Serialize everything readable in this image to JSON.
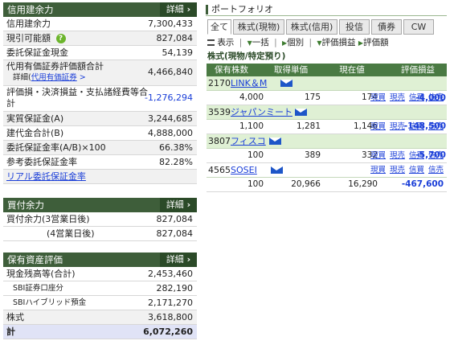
{
  "credit_panel": {
    "title": "信用建余力",
    "detail_label": "詳細",
    "rows": [
      {
        "label": "信用建余力",
        "value": "7,300,433"
      },
      {
        "label": "現引可能額",
        "value": "827,084"
      },
      {
        "label": "委託保証金現金",
        "value": "54,139"
      },
      {
        "label": "代用有価証券評価額合計",
        "value": "4,466,840"
      },
      {
        "label": "評価損・決済損益・支払諸経費等合計",
        "value": "-1,276,294"
      },
      {
        "label": "実質保証金(A)",
        "value": "3,244,685"
      },
      {
        "label": "建代金合計(B)",
        "value": "4,888,000"
      },
      {
        "label": "委託保証金率(A/B)×100",
        "value": "66.38%"
      },
      {
        "label": "参考委託保証金率",
        "value": "82.28%"
      }
    ],
    "help_icon_text": "?",
    "sub_label": "詳細(",
    "sub_link": "代用有価証券",
    "sub_arrow": ">",
    "link": "リアル委託保証金率"
  },
  "buying_panel": {
    "title": "買付余力",
    "detail_label": "詳細",
    "rows": [
      {
        "label": "買付余力(3営業日後)",
        "value": "827,084"
      },
      {
        "label": "(4営業日後)",
        "value": "827,084"
      }
    ]
  },
  "assets_panel": {
    "title": "保有資産評価",
    "detail_label": "詳細",
    "rows": [
      {
        "label": "現金残高等(合計)",
        "value": "2,453,460"
      },
      {
        "label": "SBI証券口座分",
        "value": "282,190"
      },
      {
        "label": "SBIハイブリッド預金",
        "value": "2,171,270"
      },
      {
        "label": "株式",
        "value": "3,618,800"
      },
      {
        "label": "計",
        "value": "6,072,260"
      }
    ]
  },
  "portfolio": {
    "title": "ポートフォリオ",
    "tabs": [
      "全て",
      "株式(現物)",
      "株式(信用)",
      "投信",
      "債券",
      "CW"
    ],
    "toolbar": {
      "show": "表示",
      "bulk": "一括",
      "individual": "個別",
      "sep": "|",
      "eval_gain": "評価損益",
      "eval_amount": "評価額"
    },
    "section": "株式(現物/特定預り)",
    "columns": [
      "保有株数",
      "取得単価",
      "現在値",
      "評価損益"
    ],
    "order_labels": [
      "現買",
      "現売",
      "信買",
      "信売"
    ],
    "stocks": [
      {
        "code": "2170",
        "name": "LINK＆M",
        "qty": "4,000",
        "cost": "175",
        "price": "174",
        "gain": "-4,000"
      },
      {
        "code": "3539",
        "name": "ジャパンミート",
        "qty": "1,100",
        "cost": "1,281",
        "price": "1,146",
        "gain": "-148,500"
      },
      {
        "code": "3807",
        "name": "フィスコ",
        "qty": "100",
        "cost": "389",
        "price": "332",
        "gain": "-5,700"
      },
      {
        "code": "4565",
        "name": "SOSEI",
        "qty": "100",
        "cost": "20,966",
        "price": "16,290",
        "gain": "-467,600"
      }
    ]
  }
}
